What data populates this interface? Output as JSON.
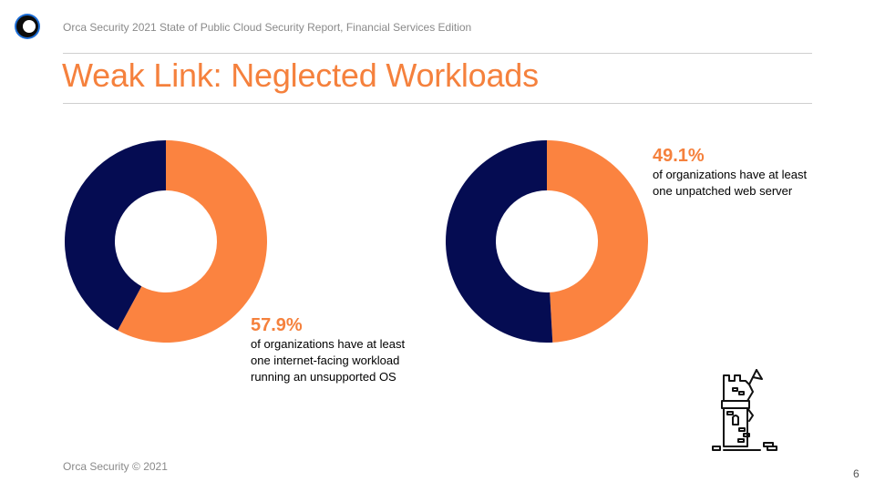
{
  "header": {
    "text": "Orca Security 2021 State of Public Cloud Security Report, Financial Services Edition"
  },
  "title": "Weak Link: Neglected Workloads",
  "colors": {
    "accent": "#f5813d",
    "dark": "#050c52",
    "logo_blue": "#1f6fd6"
  },
  "chart_data": [
    {
      "type": "pie",
      "donut": true,
      "slices": [
        {
          "value": 57.9,
          "color": "#fb8340"
        },
        {
          "value": 42.1,
          "color": "#050c52"
        }
      ],
      "label": {
        "value": "57.9%",
        "lines": [
          "of organizations have at least",
          "one internet-facing workload",
          "running an unsupported OS"
        ]
      }
    },
    {
      "type": "pie",
      "donut": true,
      "slices": [
        {
          "value": 49.1,
          "color": "#fb8340"
        },
        {
          "value": 50.9,
          "color": "#050c52"
        }
      ],
      "label": {
        "value": "49.1%",
        "lines": [
          "of organizations have at least",
          "one unpatched web server"
        ]
      }
    }
  ],
  "illustration": {
    "icon": "castle-tower-icon"
  },
  "footer": {
    "text": "Orca Security © 2021"
  },
  "page_number": "6"
}
